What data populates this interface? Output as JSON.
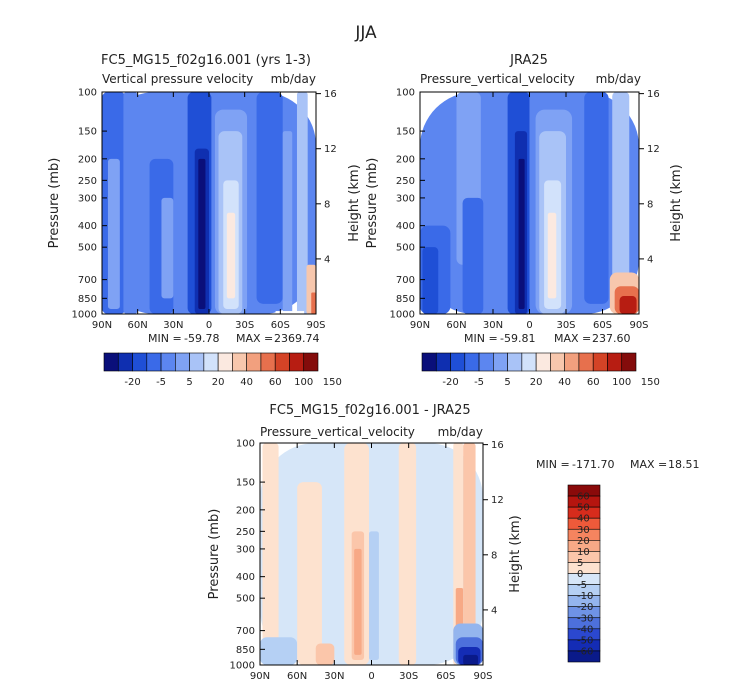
{
  "figure": {
    "season": "JJA"
  },
  "palettes": {
    "full": [
      "#0a0f7a",
      "#0f2fb0",
      "#1f4fd6",
      "#3a6ae8",
      "#5c86f0",
      "#7fa2f4",
      "#a9c3f7",
      "#d2e2fb",
      "#fbe9e0",
      "#f7c7ad",
      "#f2a07e",
      "#e7704d",
      "#d44326",
      "#b71d12",
      "#840c0b"
    ],
    "diff": [
      "#8a0a0a",
      "#b5150f",
      "#d72c1c",
      "#ee5a3a",
      "#f5845f",
      "#f7a986",
      "#fbc6aa",
      "#fde2cf",
      "#d6e6f8",
      "#b5d0f4",
      "#94b5ee",
      "#6f93e6",
      "#4d70dc",
      "#2b48cf",
      "#142cb5",
      "#0a1a8a"
    ]
  },
  "chart_data": [
    {
      "type": "heatmap",
      "panel_key": "model",
      "title": "FC5_MG15_f02g16.001 (yrs 1-3)",
      "subtitle": "Vertical pressure velocity",
      "units": "mb/day",
      "xlabel": "",
      "ylabel": "Pressure (mb)",
      "ylabel_right": "Height (km)",
      "x_ticks": [
        "90N",
        "60N",
        "30N",
        "0",
        "30S",
        "60S",
        "90S"
      ],
      "y_ticks": [
        "100",
        "150",
        "200",
        "250",
        "300",
        "400",
        "500",
        "700",
        "850",
        "1000"
      ],
      "y_ticks_right": [
        "16",
        "12",
        "8",
        "4"
      ],
      "stats": {
        "min_label": "MIN =",
        "min": "-59.78",
        "max_label": "MAX =",
        "max": "2369.74"
      },
      "colorbar_labels": [
        "-20",
        "-5",
        "5",
        "20",
        "40",
        "60",
        "100",
        "150"
      ],
      "palette": "full",
      "regions": [
        {
          "lat": [
            90,
            -90
          ],
          "p": [
            100,
            1000
          ],
          "level": 4
        },
        {
          "lat": [
            90,
            70
          ],
          "p": [
            100,
            1000
          ],
          "level": 3
        },
        {
          "lat": [
            85,
            75
          ],
          "p": [
            200,
            950
          ],
          "level": 5
        },
        {
          "lat": [
            72,
            60
          ],
          "p": [
            100,
            1000
          ],
          "level": 4
        },
        {
          "lat": [
            50,
            30
          ],
          "p": [
            200,
            1000
          ],
          "level": 3
        },
        {
          "lat": [
            40,
            30
          ],
          "p": [
            300,
            850
          ],
          "level": 5
        },
        {
          "lat": [
            18,
            -2
          ],
          "p": [
            100,
            1000
          ],
          "level": 2
        },
        {
          "lat": [
            12,
            0
          ],
          "p": [
            180,
            1000
          ],
          "level": 1
        },
        {
          "lat": [
            9,
            3
          ],
          "p": [
            200,
            950
          ],
          "level": 0
        },
        {
          "lat": [
            -5,
            -32
          ],
          "p": [
            120,
            1000
          ],
          "level": 5
        },
        {
          "lat": [
            -8,
            -28
          ],
          "p": [
            150,
            1000
          ],
          "level": 6
        },
        {
          "lat": [
            -12,
            -25
          ],
          "p": [
            250,
            950
          ],
          "level": 7
        },
        {
          "lat": [
            -15,
            -22
          ],
          "p": [
            350,
            850
          ],
          "level": 8
        },
        {
          "lat": [
            -40,
            -62
          ],
          "p": [
            100,
            900
          ],
          "level": 3
        },
        {
          "lat": [
            -62,
            -70
          ],
          "p": [
            150,
            1000
          ],
          "level": 5
        },
        {
          "lat": [
            -74,
            -83
          ],
          "p": [
            100,
            1000
          ],
          "level": 6
        },
        {
          "lat": [
            -82,
            -90
          ],
          "p": [
            600,
            1000
          ],
          "level": 9
        },
        {
          "lat": [
            -86,
            -90
          ],
          "p": [
            800,
            1000
          ],
          "level": 11
        }
      ],
      "masks": [
        {
          "lat": [
            -56,
            -80
          ],
          "p": [
            970,
            1000
          ]
        }
      ]
    },
    {
      "type": "heatmap",
      "panel_key": "obs",
      "title": "JRA25",
      "subtitle": "Pressure_vertical_velocity",
      "units": "mb/day",
      "xlabel": "",
      "ylabel": "Pressure (mb)",
      "ylabel_right": "Height (km)",
      "x_ticks": [
        "90N",
        "60N",
        "30N",
        "0",
        "30S",
        "60S",
        "90S"
      ],
      "y_ticks": [
        "100",
        "150",
        "200",
        "250",
        "300",
        "400",
        "500",
        "700",
        "850",
        "1000"
      ],
      "y_ticks_right": [
        "16",
        "12",
        "8",
        "4"
      ],
      "stats": {
        "min_label": "MIN =",
        "min": "-59.81",
        "max_label": "MAX =",
        "max": "237.60"
      },
      "colorbar_labels": [
        "-20",
        "-5",
        "5",
        "20",
        "40",
        "60",
        "100",
        "150"
      ],
      "palette": "full",
      "regions": [
        {
          "lat": [
            90,
            -90
          ],
          "p": [
            100,
            1000
          ],
          "level": 4
        },
        {
          "lat": [
            90,
            65
          ],
          "p": [
            400,
            1000
          ],
          "level": 3
        },
        {
          "lat": [
            88,
            75
          ],
          "p": [
            500,
            1000
          ],
          "level": 2
        },
        {
          "lat": [
            60,
            40
          ],
          "p": [
            100,
            600
          ],
          "level": 5
        },
        {
          "lat": [
            55,
            38
          ],
          "p": [
            300,
            1000
          ],
          "level": 3
        },
        {
          "lat": [
            18,
            0
          ],
          "p": [
            100,
            1000
          ],
          "level": 2
        },
        {
          "lat": [
            12,
            2
          ],
          "p": [
            150,
            1000
          ],
          "level": 1
        },
        {
          "lat": [
            9,
            4
          ],
          "p": [
            200,
            950
          ],
          "level": 0
        },
        {
          "lat": [
            -5,
            -35
          ],
          "p": [
            120,
            1000
          ],
          "level": 5
        },
        {
          "lat": [
            -8,
            -30
          ],
          "p": [
            150,
            1000
          ],
          "level": 6
        },
        {
          "lat": [
            -12,
            -26
          ],
          "p": [
            250,
            950
          ],
          "level": 7
        },
        {
          "lat": [
            -15,
            -22
          ],
          "p": [
            350,
            850
          ],
          "level": 8
        },
        {
          "lat": [
            -45,
            -65
          ],
          "p": [
            100,
            900
          ],
          "level": 3
        },
        {
          "lat": [
            -68,
            -82
          ],
          "p": [
            100,
            700
          ],
          "level": 6
        },
        {
          "lat": [
            -66,
            -90
          ],
          "p": [
            650,
            1000
          ],
          "level": 9
        },
        {
          "lat": [
            -70,
            -90
          ],
          "p": [
            750,
            1000
          ],
          "level": 11
        },
        {
          "lat": [
            -74,
            -88
          ],
          "p": [
            830,
            1000
          ],
          "level": 13
        }
      ],
      "masks": []
    },
    {
      "type": "heatmap",
      "panel_key": "diff",
      "title": "FC5_MG15_f02g16.001 - JRA25",
      "subtitle": "Pressure_vertical_velocity",
      "units": "mb/day",
      "xlabel": "",
      "ylabel": "Pressure (mb)",
      "ylabel_right": "Height (km)",
      "x_ticks": [
        "90N",
        "60N",
        "30N",
        "0",
        "30S",
        "60S",
        "90S"
      ],
      "y_ticks": [
        "100",
        "150",
        "200",
        "250",
        "300",
        "400",
        "500",
        "700",
        "850",
        "1000"
      ],
      "y_ticks_right": [
        "16",
        "12",
        "8",
        "4"
      ],
      "stats": {
        "min_label": "MIN =",
        "min": "-171.70",
        "max_label": "MAX =",
        "max": "18.51"
      },
      "colorbar_labels": [
        "60",
        "50",
        "40",
        "30",
        "20",
        "10",
        "5",
        "0",
        "-5",
        "-10",
        "-20",
        "-30",
        "-40",
        "-50",
        "-60"
      ],
      "palette": "diff",
      "regions": [
        {
          "lat": [
            90,
            -90
          ],
          "p": [
            100,
            1000
          ],
          "level": 8
        },
        {
          "lat": [
            88,
            75
          ],
          "p": [
            100,
            1000
          ],
          "level": 7
        },
        {
          "lat": [
            90,
            60
          ],
          "p": [
            750,
            1000
          ],
          "level": 9
        },
        {
          "lat": [
            60,
            40
          ],
          "p": [
            150,
            1000
          ],
          "level": 7
        },
        {
          "lat": [
            45,
            30
          ],
          "p": [
            800,
            1000
          ],
          "level": 6
        },
        {
          "lat": [
            22,
            2
          ],
          "p": [
            100,
            1000
          ],
          "level": 7
        },
        {
          "lat": [
            16,
            6
          ],
          "p": [
            250,
            950
          ],
          "level": 6
        },
        {
          "lat": [
            14,
            8
          ],
          "p": [
            300,
            900
          ],
          "level": 5
        },
        {
          "lat": [
            2,
            -6
          ],
          "p": [
            250,
            950
          ],
          "level": 9
        },
        {
          "lat": [
            -22,
            -36
          ],
          "p": [
            100,
            1000
          ],
          "level": 7
        },
        {
          "lat": [
            -66,
            -74
          ],
          "p": [
            100,
            1000
          ],
          "level": 7
        },
        {
          "lat": [
            -68,
            -74
          ],
          "p": [
            450,
            700
          ],
          "level": 5
        },
        {
          "lat": [
            -74,
            -84
          ],
          "p": [
            100,
            900
          ],
          "level": 6
        },
        {
          "lat": [
            -66,
            -90
          ],
          "p": [
            650,
            1000
          ],
          "level": 10
        },
        {
          "lat": [
            -68,
            -90
          ],
          "p": [
            750,
            1000
          ],
          "level": 12
        },
        {
          "lat": [
            -70,
            -88
          ],
          "p": [
            830,
            1000
          ],
          "level": 14
        },
        {
          "lat": [
            -74,
            -86
          ],
          "p": [
            900,
            1000
          ],
          "level": 15
        }
      ],
      "masks": []
    }
  ]
}
